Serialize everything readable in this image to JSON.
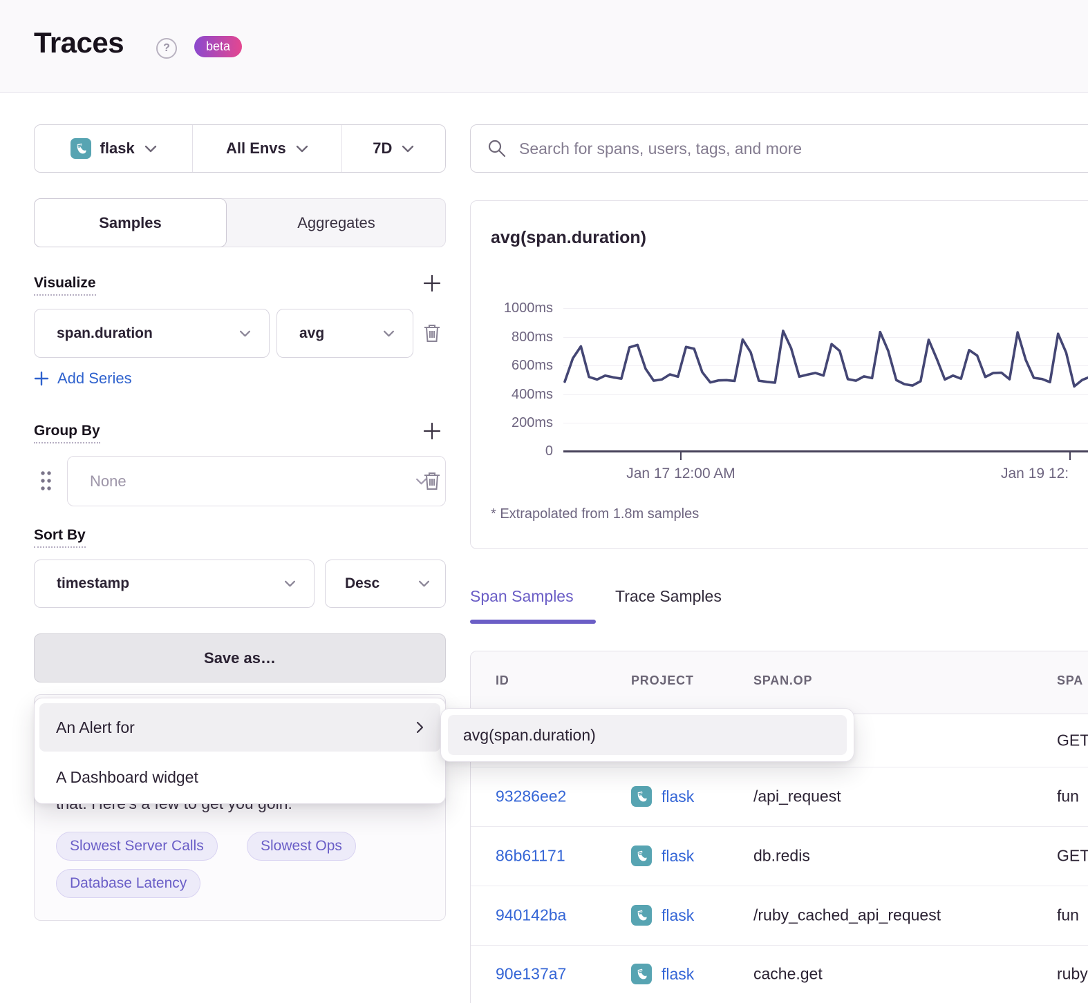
{
  "header": {
    "title": "Traces",
    "help_glyph": "?",
    "beta_label": "beta"
  },
  "filters": {
    "project": "flask",
    "environment": "All Envs",
    "period": "7D"
  },
  "mode_tabs": {
    "samples": "Samples",
    "aggregates": "Aggregates"
  },
  "visualize": {
    "label": "Visualize",
    "field": "span.duration",
    "aggregate": "avg",
    "add_series_label": "Add Series"
  },
  "group_by": {
    "label": "Group By",
    "placeholder": "None"
  },
  "sort_by": {
    "label": "Sort By",
    "field": "timestamp",
    "direction": "Desc"
  },
  "save_as": {
    "button_label": "Save as…",
    "menu": [
      {
        "label": "An Alert for",
        "submenu": [
          "avg(span.duration)"
        ]
      },
      {
        "label": "A Dashboard widget"
      }
    ]
  },
  "getting_started": {
    "visible_text": "that. Here's a few to get you goin.",
    "suggestions": [
      "Slowest Server Calls",
      "Slowest Ops",
      "Database Latency"
    ]
  },
  "search": {
    "placeholder": "Search for spans, users, tags, and more"
  },
  "chart_data": {
    "type": "line",
    "title": "avg(span.duration)",
    "unit": "ms",
    "ylim": [
      0,
      1000
    ],
    "yticks_desc": [
      "1000ms",
      "800ms",
      "600ms",
      "400ms",
      "200ms",
      "0"
    ],
    "xticks": [
      "Jan 17 12:00 AM",
      "Jan 19 12:"
    ],
    "grid": "horizontal",
    "footnote": "* Extrapolated from 1.8m samples",
    "series": [
      {
        "name": "avg(span.duration)",
        "values": [
          485,
          648,
          732,
          518,
          500,
          528,
          515,
          506,
          725,
          742,
          575,
          492,
          500,
          536,
          520,
          728,
          715,
          552,
          480,
          494,
          496,
          490,
          780,
          690,
          492,
          484,
          478,
          840,
          718,
          520,
          534,
          546,
          528,
          748,
          700,
          503,
          492,
          522,
          510,
          832,
          700,
          496,
          468,
          458,
          488,
          778,
          645,
          500,
          528,
          506,
          706,
          668,
          518,
          546,
          548,
          502,
          830,
          638,
          512,
          504,
          482,
          820,
          688,
          452,
          498,
          520,
          505
        ]
      }
    ]
  },
  "sample_tabs": {
    "span": "Span Samples",
    "trace": "Trace Samples"
  },
  "table": {
    "columns": [
      "ID",
      "PROJECT",
      "SPAN.OP",
      "SPA"
    ],
    "rows": [
      {
        "id": "",
        "project": "",
        "span_op": "",
        "description": "GET"
      },
      {
        "id": "93286ee2",
        "project": "flask",
        "span_op": "/api_request",
        "description": "fun"
      },
      {
        "id": "86b61171",
        "project": "flask",
        "span_op": "db.redis",
        "description": "GET"
      },
      {
        "id": "940142ba",
        "project": "flask",
        "span_op": "/ruby_cached_api_request",
        "description": "fun"
      },
      {
        "id": "90e137a7",
        "project": "flask",
        "span_op": "cache.get",
        "description": "ruby"
      }
    ]
  },
  "colors": {
    "accent_purple": "#6b5ec6",
    "link_blue": "#3566d6",
    "flask_teal": "#57a4b2",
    "chart_line": "#444674",
    "beta_gradient_start": "#8a49cf",
    "beta_gradient_end": "#e5478f"
  }
}
